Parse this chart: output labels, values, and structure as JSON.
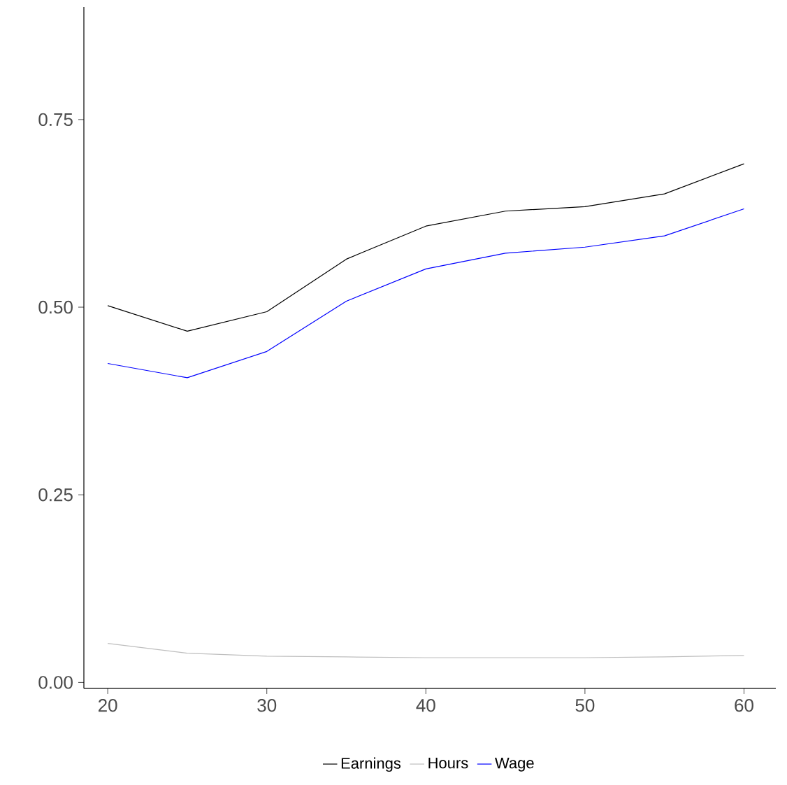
{
  "chart_data": {
    "type": "line",
    "x": [
      20,
      25,
      30,
      35,
      40,
      45,
      50,
      55,
      60
    ],
    "series": [
      {
        "name": "Earnings",
        "color": "#000000",
        "values": [
          0.502,
          0.468,
          0.494,
          0.564,
          0.608,
          0.628,
          0.634,
          0.651,
          0.691
        ]
      },
      {
        "name": "Hours",
        "color": "#bebebe",
        "values": [
          0.052,
          0.039,
          0.035,
          0.034,
          0.033,
          0.033,
          0.033,
          0.034,
          0.036
        ]
      },
      {
        "name": "Wage",
        "color": "#0000ff",
        "values": [
          0.425,
          0.406,
          0.441,
          0.508,
          0.551,
          0.572,
          0.58,
          0.595,
          0.631
        ]
      }
    ],
    "xlim": [
      18.5,
      62
    ],
    "ylim": [
      -0.008,
      0.9
    ],
    "xticks": [
      20,
      30,
      40,
      50,
      60
    ],
    "yticks": [
      {
        "value": 0,
        "label": "0.00"
      },
      {
        "value": 0.25,
        "label": "0.25"
      },
      {
        "value": 0.5,
        "label": "0.50"
      },
      {
        "value": 0.75,
        "label": "0.75"
      }
    ],
    "grid": false,
    "legend": "bottom",
    "marker": "none",
    "line_style": "solid"
  }
}
